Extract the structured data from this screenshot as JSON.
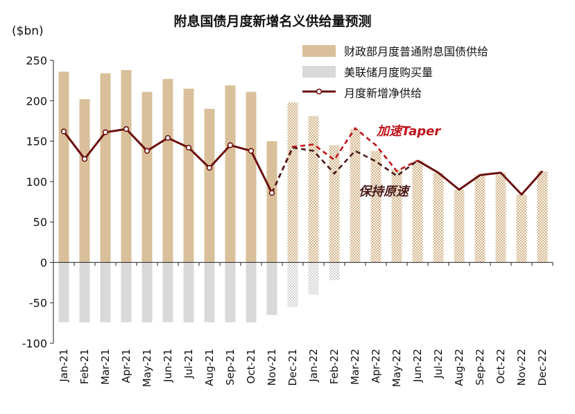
{
  "chart_data": {
    "type": "bar",
    "title": "附息国债月度新增名义供给量预测",
    "ylabel": "($bn)",
    "ylim": [
      -100,
      250
    ],
    "yticks": [
      -100,
      -50,
      0,
      50,
      100,
      150,
      200,
      250
    ],
    "categories": [
      "Jan-21",
      "Feb-21",
      "Mar-21",
      "Apr-21",
      "May-21",
      "Jun-21",
      "Jul-21",
      "Aug-21",
      "Sep-21",
      "Oct-21",
      "Nov-21",
      "Dec-21",
      "Jan-22",
      "Feb-22",
      "Mar-22",
      "Apr-22",
      "May-22",
      "Jun-22",
      "Jul-22",
      "Aug-22",
      "Sep-22",
      "Oct-22",
      "Nov-22",
      "Dec-22"
    ],
    "forecast_start_index": 11,
    "series": [
      {
        "name": "财政部月度普通附息国债供给",
        "kind": "bar",
        "color": "#d9c09a",
        "values": [
          236,
          202,
          234,
          238,
          211,
          227,
          215,
          190,
          219,
          211,
          150,
          198,
          181,
          145,
          165,
          138,
          115,
          126,
          111,
          90,
          108,
          111,
          84,
          113
        ]
      },
      {
        "name": "美联储月度购买量",
        "kind": "bar",
        "color": "#d9d9d9",
        "values": [
          -74,
          -74,
          -74,
          -74,
          -74,
          -74,
          -74,
          -74,
          -74,
          -74,
          -65,
          -55,
          -40,
          -22,
          0,
          0,
          0,
          0,
          0,
          0,
          0,
          0,
          0,
          0
        ]
      },
      {
        "name": "月度新增净供给",
        "kind": "line",
        "color": "#6b0f0f",
        "values": [
          162,
          128,
          161,
          165,
          138,
          154,
          142,
          117,
          145,
          138,
          86,
          null,
          null,
          null,
          null,
          null,
          null,
          126,
          111,
          90,
          108,
          111,
          84,
          113
        ]
      },
      {
        "name": "加速Taper",
        "kind": "dashed",
        "color": "#c0141b",
        "values": [
          null,
          null,
          null,
          null,
          null,
          null,
          null,
          null,
          null,
          null,
          86,
          143,
          146,
          127,
          166,
          145,
          113,
          126,
          null,
          null,
          null,
          null,
          null,
          null
        ]
      },
      {
        "name": "保持原速",
        "kind": "dashed",
        "color": "#4a1a1a",
        "values": [
          null,
          null,
          null,
          null,
          null,
          null,
          null,
          null,
          null,
          null,
          86,
          142,
          138,
          110,
          138,
          125,
          107,
          126,
          null,
          null,
          null,
          null,
          null,
          null
        ]
      }
    ],
    "legend": [
      "财政部月度普通附息国债供给",
      "美联储月度购买量",
      "月度新增净供给"
    ],
    "annotations": [
      "加速Taper",
      "保持原速"
    ]
  }
}
